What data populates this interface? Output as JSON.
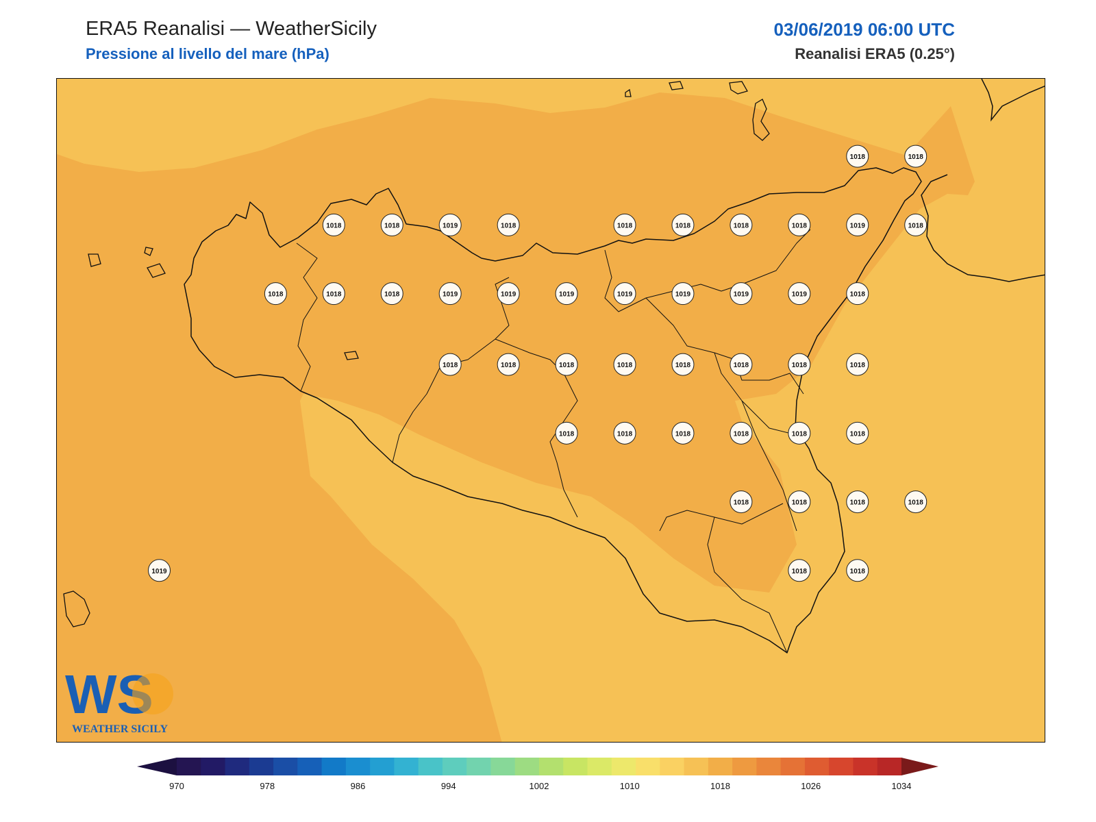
{
  "header": {
    "title": "ERA5 Reanalisi — WeatherSicily",
    "subtitle": "Pressione al livello del mare (hPa)",
    "datetime": "03/06/2019 06:00 UTC",
    "source": "Reanalisi ERA5 (0.25°)"
  },
  "logo": {
    "letters": "WS",
    "text": "WEATHER SICILY",
    "colors": {
      "blue": "#1a5fb4",
      "orange": "#f5a21b",
      "green": "#5cb85c"
    }
  },
  "fields": {
    "colors": {
      "base": "#f6c155",
      "band_1018": "#f2ae48",
      "coast": "#111111"
    }
  },
  "stations": [
    {
      "lat": 38.25,
      "lon": 15.0,
      "value": "1018"
    },
    {
      "lat": 38.25,
      "lon": 15.25,
      "value": "1018"
    },
    {
      "lat": 37.94,
      "lon": 12.75,
      "value": "1018"
    },
    {
      "lat": 37.94,
      "lon": 13.0,
      "value": "1018"
    },
    {
      "lat": 37.94,
      "lon": 13.25,
      "value": "1019"
    },
    {
      "lat": 37.94,
      "lon": 13.5,
      "value": "1018"
    },
    {
      "lat": 37.94,
      "lon": 14.0,
      "value": "1018"
    },
    {
      "lat": 37.94,
      "lon": 14.25,
      "value": "1018"
    },
    {
      "lat": 37.94,
      "lon": 14.5,
      "value": "1018"
    },
    {
      "lat": 37.94,
      "lon": 14.75,
      "value": "1018"
    },
    {
      "lat": 37.94,
      "lon": 15.0,
      "value": "1019"
    },
    {
      "lat": 37.94,
      "lon": 15.25,
      "value": "1018"
    },
    {
      "lat": 37.63,
      "lon": 12.5,
      "value": "1018"
    },
    {
      "lat": 37.63,
      "lon": 12.75,
      "value": "1018"
    },
    {
      "lat": 37.63,
      "lon": 13.0,
      "value": "1018"
    },
    {
      "lat": 37.63,
      "lon": 13.25,
      "value": "1019"
    },
    {
      "lat": 37.63,
      "lon": 13.5,
      "value": "1019"
    },
    {
      "lat": 37.63,
      "lon": 13.75,
      "value": "1019"
    },
    {
      "lat": 37.63,
      "lon": 14.0,
      "value": "1019"
    },
    {
      "lat": 37.63,
      "lon": 14.25,
      "value": "1019"
    },
    {
      "lat": 37.63,
      "lon": 14.5,
      "value": "1019"
    },
    {
      "lat": 37.63,
      "lon": 14.75,
      "value": "1019"
    },
    {
      "lat": 37.63,
      "lon": 15.0,
      "value": "1018"
    },
    {
      "lat": 37.31,
      "lon": 13.25,
      "value": "1018"
    },
    {
      "lat": 37.31,
      "lon": 13.5,
      "value": "1018"
    },
    {
      "lat": 37.31,
      "lon": 13.75,
      "value": "1018"
    },
    {
      "lat": 37.31,
      "lon": 14.0,
      "value": "1018"
    },
    {
      "lat": 37.31,
      "lon": 14.25,
      "value": "1018"
    },
    {
      "lat": 37.31,
      "lon": 14.5,
      "value": "1018"
    },
    {
      "lat": 37.31,
      "lon": 14.75,
      "value": "1018"
    },
    {
      "lat": 37.31,
      "lon": 15.0,
      "value": "1018"
    },
    {
      "lat": 37.0,
      "lon": 13.75,
      "value": "1018"
    },
    {
      "lat": 37.0,
      "lon": 14.0,
      "value": "1018"
    },
    {
      "lat": 37.0,
      "lon": 14.25,
      "value": "1018"
    },
    {
      "lat": 37.0,
      "lon": 14.5,
      "value": "1018"
    },
    {
      "lat": 37.0,
      "lon": 14.75,
      "value": "1018"
    },
    {
      "lat": 37.0,
      "lon": 15.0,
      "value": "1018"
    },
    {
      "lat": 36.69,
      "lon": 14.5,
      "value": "1018"
    },
    {
      "lat": 36.69,
      "lon": 14.75,
      "value": "1018"
    },
    {
      "lat": 36.69,
      "lon": 15.0,
      "value": "1018"
    },
    {
      "lat": 36.69,
      "lon": 15.25,
      "value": "1018"
    },
    {
      "lat": 36.38,
      "lon": 14.75,
      "value": "1018"
    },
    {
      "lat": 36.38,
      "lon": 15.0,
      "value": "1018"
    },
    {
      "lat": 36.38,
      "lon": 12.0,
      "value": "1019"
    }
  ],
  "colorbar": {
    "ticks": [
      "970",
      "978",
      "986",
      "994",
      "1002",
      "1010",
      "1018",
      "1026",
      "1034"
    ],
    "colors": [
      "#241552",
      "#221a65",
      "#1f2a7e",
      "#1b3b92",
      "#1a4ea6",
      "#1660b8",
      "#127ac8",
      "#1a8ed0",
      "#239fd2",
      "#33b2d2",
      "#49c3c8",
      "#5ecdbd",
      "#72d3ae",
      "#87d898",
      "#9ddc82",
      "#b3e06e",
      "#c8e563",
      "#dbe967",
      "#ede86b",
      "#f9df6a",
      "#fad162",
      "#f6c155",
      "#f2ae48",
      "#ee9a40",
      "#ea863b",
      "#e57236",
      "#df5c31",
      "#d7462d",
      "#c93329",
      "#b82726"
    ],
    "under": "#1c1040",
    "over": "#7a1a1a"
  }
}
